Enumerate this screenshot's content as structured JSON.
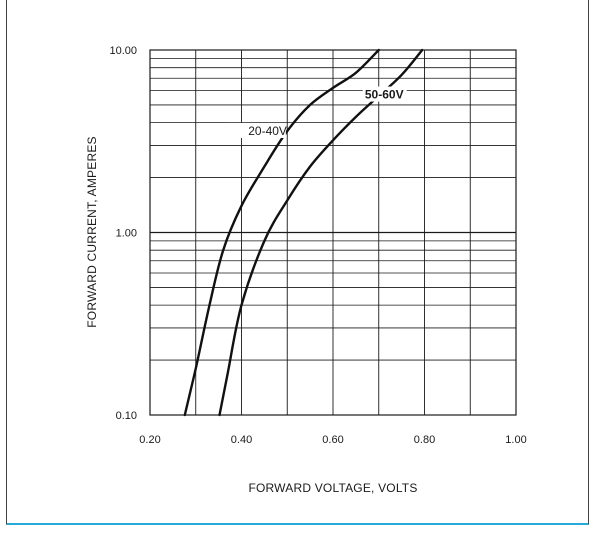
{
  "chart_data": {
    "type": "line",
    "xlabel": "FORWARD VOLTAGE, VOLTS",
    "ylabel": "FORWARD CURRENT, AMPERES",
    "xlim": [
      0.2,
      1.0
    ],
    "ylim": [
      0.1,
      10.0
    ],
    "yscale": "log",
    "grid": true,
    "x_ticks": [
      "0.20",
      "0.40",
      "0.60",
      "0.80",
      "1.00"
    ],
    "x_tick_values": [
      0.2,
      0.4,
      0.6,
      0.8,
      1.0
    ],
    "y_ticks": [
      "0.10",
      "1.00",
      "10.00"
    ],
    "y_tick_values": [
      0.1,
      1.0,
      10.0
    ],
    "series": [
      {
        "name": "20-40V",
        "points": [
          [
            0.276,
            0.1
          ],
          [
            0.3,
            0.18
          ],
          [
            0.33,
            0.4
          ],
          [
            0.36,
            0.8
          ],
          [
            0.4,
            1.4
          ],
          [
            0.45,
            2.3
          ],
          [
            0.5,
            3.6
          ],
          [
            0.55,
            5.0
          ],
          [
            0.6,
            6.2
          ],
          [
            0.65,
            7.5
          ],
          [
            0.7,
            10.0
          ]
        ]
      },
      {
        "name": "50-60V",
        "points": [
          [
            0.352,
            0.1
          ],
          [
            0.37,
            0.17
          ],
          [
            0.4,
            0.4
          ],
          [
            0.45,
            0.9
          ],
          [
            0.5,
            1.5
          ],
          [
            0.55,
            2.3
          ],
          [
            0.6,
            3.2
          ],
          [
            0.65,
            4.3
          ],
          [
            0.7,
            5.6
          ],
          [
            0.75,
            7.3
          ],
          [
            0.795,
            10.0
          ]
        ]
      }
    ]
  }
}
